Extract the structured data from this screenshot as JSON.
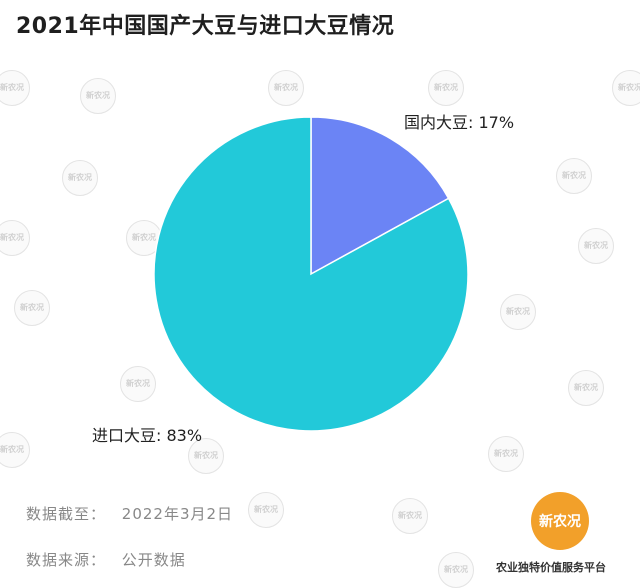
{
  "header": {
    "title": "2021年中国国产大豆与进口大豆情况"
  },
  "chart_data": {
    "type": "pie",
    "title": "2021年中国国产大豆与进口大豆情况",
    "slices": [
      {
        "label": "国内大豆: 17%",
        "value": 17,
        "color": "#6b84f5"
      },
      {
        "label": "进口大豆: 83%",
        "value": 83,
        "color": "#22c9d9"
      }
    ]
  },
  "footer": {
    "date_label": "数据截至：",
    "date_value": "2022年3月2日",
    "source_label": "数据来源：",
    "source_value": "公开数据"
  },
  "brand": {
    "logo_text": "新农况",
    "tagline": "农业独特价值服务平台"
  },
  "colors": {
    "accent": "#f2a02a",
    "domestic": "#6b84f5",
    "imported": "#22c9d9"
  }
}
